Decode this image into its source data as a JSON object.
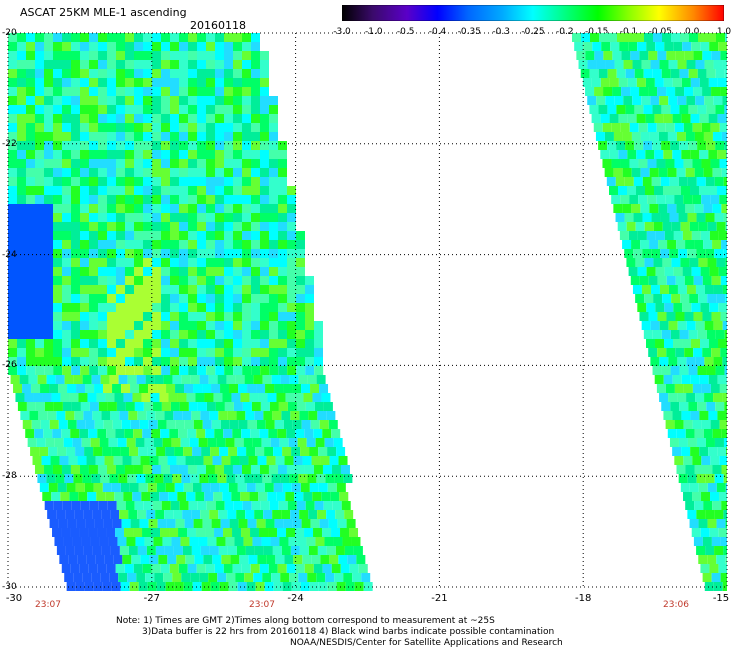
{
  "header": {
    "title": "ASCAT 25KM MLE-1 ascending",
    "date": "20160118"
  },
  "colorbar": {
    "labels": [
      "-3.0",
      "-1.0",
      "-0.5",
      "-0.4",
      "-0.35",
      "-0.3",
      "-0.25",
      "-0.2",
      "-0.15",
      "-0.1",
      "-0.05",
      "0.0",
      "1.0"
    ],
    "colors": [
      "#000000",
      "#3a0a6a",
      "#5a00c8",
      "#0000ff",
      "#0066ff",
      "#00aaff",
      "#00ffff",
      "#00ff88",
      "#00ff00",
      "#88ff00",
      "#ffff00",
      "#ff8800",
      "#ff0000"
    ]
  },
  "axes": {
    "lat_labels": [
      "-20",
      "-22",
      "-24",
      "-26",
      "-28",
      "-30"
    ],
    "lon_labels": [
      "-30",
      "-27",
      "-24",
      "-21",
      "-18",
      "-15"
    ],
    "time_labels": [
      "23:07",
      "23:07",
      "23:06"
    ]
  },
  "notes": {
    "line1": "Note: 1) Times are GMT 2)Times along bottom correspond to measurement at ~25S",
    "line2": "3)Data buffer is 22 hrs from 20160118 4) Black wind barbs indicate possible contamination",
    "line3": "NOAA/NESDIS/Center for Satellite Applications and Research"
  }
}
